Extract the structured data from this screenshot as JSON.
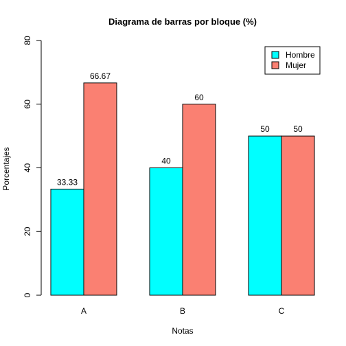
{
  "chart_data": {
    "type": "bar",
    "title": "Diagrama de barras por bloque (%)",
    "xlabel": "Notas",
    "ylabel": "Porcentajes",
    "categories": [
      "A",
      "B",
      "C"
    ],
    "ylim": [
      0,
      80
    ],
    "yticks": [
      "0",
      "20",
      "40",
      "60",
      "80"
    ],
    "grid": false,
    "legend_position": "top-right",
    "series": [
      {
        "name": "Hombre",
        "color": "#00FFFF",
        "values": [
          33.33,
          40,
          50
        ],
        "labels": [
          "33.33",
          "40",
          "50"
        ]
      },
      {
        "name": "Mujer",
        "color": "#FA8072",
        "values": [
          66.67,
          60,
          50
        ],
        "labels": [
          "66.67",
          "60",
          "50"
        ]
      }
    ]
  }
}
